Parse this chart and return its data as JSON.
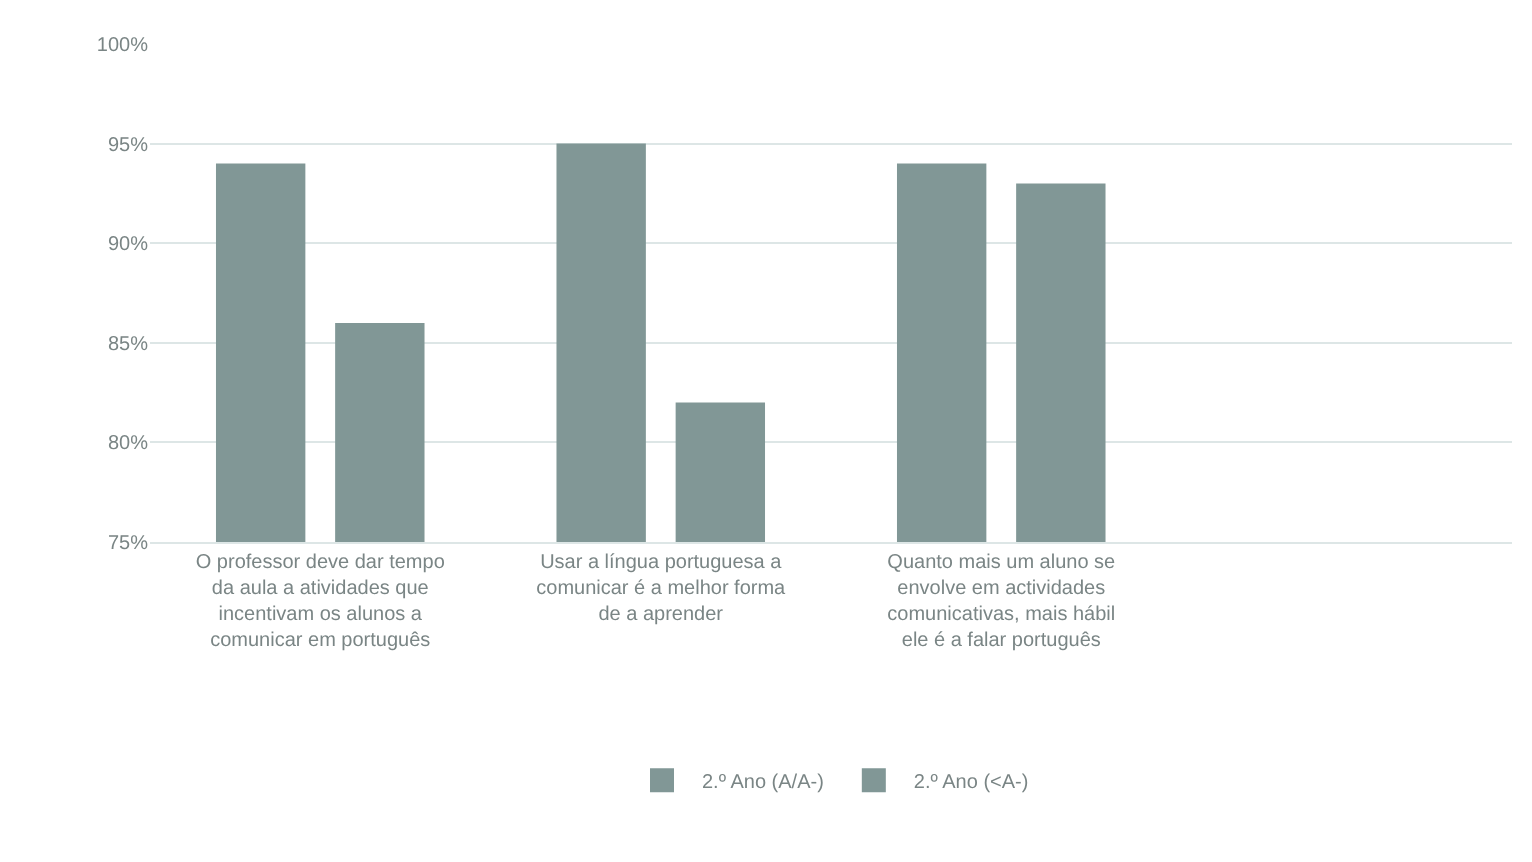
{
  "chart_data": {
    "type": "bar",
    "categories": [
      "O professor deve dar tempo da aula a atividades que incentivam os alunos a comunicar em português",
      "Usar a língua portuguesa a comunicar é a melhor forma de a aprender",
      "Quanto mais um aluno se envolve em actividades comunicativas, mais hábil ele é a falar português",
      null
    ],
    "series": [
      {
        "name": "2.º Ano (A/A-)",
        "color": "#819796",
        "values": [
          94,
          95,
          94,
          null
        ]
      },
      {
        "name": "2.º Ano (<A-)",
        "color": "#819796",
        "values": [
          86,
          82,
          93,
          null
        ]
      }
    ],
    "ylim": [
      75,
      100
    ],
    "yticks": [
      {
        "value": 75,
        "label": "75%"
      },
      {
        "value": 80,
        "label": "80%"
      },
      {
        "value": 85,
        "label": "85%"
      },
      {
        "value": 90,
        "label": "90%"
      },
      {
        "value": 95,
        "label": "95%"
      },
      {
        "value": 100,
        "label": "100%"
      }
    ],
    "grid": "y",
    "legend": "bottom"
  }
}
